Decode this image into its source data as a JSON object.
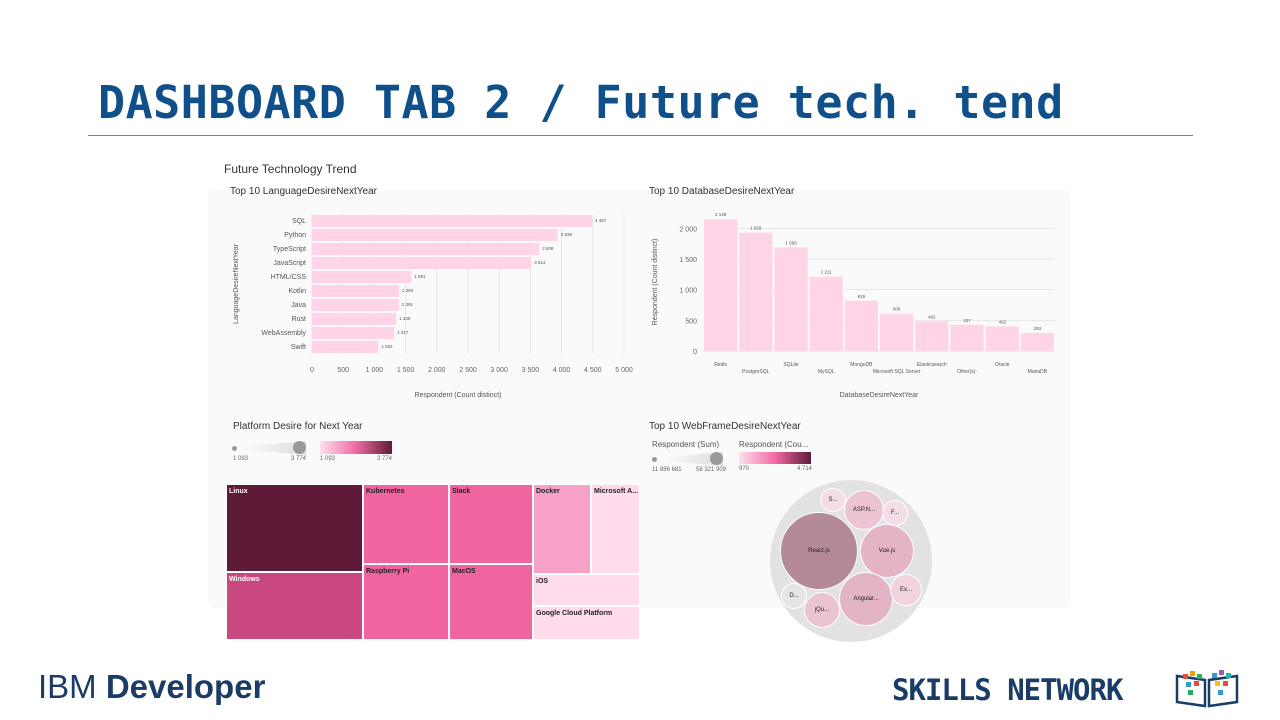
{
  "slide": {
    "title": "DASHBOARD TAB 2 / Future tech. tend",
    "ibm_logo_prefix": "IBM",
    "ibm_logo_bold": "Developer",
    "skills_network": "SKILLS NETWORK"
  },
  "dashboard": {
    "title": "Future Technology Trend"
  },
  "chart_data": [
    {
      "type": "bar",
      "orientation": "horizontal",
      "title": "Top 10 LanguageDesireNextYear",
      "xlabel": "Respondent (Count distinct)",
      "ylabel": "LanguageDesireNextYear",
      "xlim": [
        0,
        5000
      ],
      "ticks": [
        "0",
        "500",
        "1 000",
        "1 500",
        "2 000",
        "2 500",
        "3 000",
        "3 500",
        "4 000",
        "4 500",
        "5 000"
      ],
      "categories": [
        "SQL",
        "Python",
        "TypeScript",
        "JavaScript",
        "HTML/CSS",
        "Kotlin",
        "Java",
        "Rust",
        "WebAssembly",
        "Swift"
      ],
      "values": [
        4487,
        3938,
        3639,
        3514,
        1591,
        1393,
        1391,
        1349,
        1317,
        1062
      ],
      "labels": [
        "4 487",
        "3 938",
        "3 639",
        "3 514",
        "1 591",
        "1 393",
        "1 391",
        "1 349",
        "1 317",
        "1 062"
      ],
      "color": "#ffd4e6",
      "grid": true
    },
    {
      "type": "bar",
      "title": "Top 10 DatabaseDesireNextYear",
      "xlabel": "DatabaseDesireNextYear",
      "ylabel": "Respondent (Count distinct)",
      "ylim": [
        0,
        2250
      ],
      "ticks": [
        "0",
        "500",
        "1 000",
        "1 500",
        "2 000"
      ],
      "categories": [
        "Redis",
        "PostgreSQL",
        "SQLite",
        "MySQL",
        "MongoDB",
        "Microsoft SQL Server",
        "Elasticsearch",
        "Other(s):",
        "Oracle",
        "MariaDB"
      ],
      "values": [
        2149,
        1929,
        1690,
        1211,
        819,
        608,
        482,
        427,
        402,
        293
      ],
      "labels": [
        "2 149",
        "1 929",
        "1 690",
        "1 211",
        "819",
        "608",
        "482",
        "427",
        "402",
        "293"
      ],
      "color": "#ffd4e6",
      "grid": true
    },
    {
      "type": "treemap",
      "title": "Platform Desire for Next Year",
      "size_range": [
        "1 093",
        "3 774"
      ],
      "color_range": [
        "1 093",
        "3 774"
      ],
      "items": [
        {
          "name": "Linux",
          "color": "#5e1a36"
        },
        {
          "name": "Windows",
          "color": "#c94880"
        },
        {
          "name": "Kubernetes",
          "color": "#f0649f"
        },
        {
          "name": "Raspberry Pi",
          "color": "#f0649f"
        },
        {
          "name": "Slack",
          "color": "#f0649f"
        },
        {
          "name": "MacOS",
          "color": "#f0649f"
        },
        {
          "name": "Docker",
          "color": "#f7a1c8"
        },
        {
          "name": "Microsoft A...",
          "color": "#ffdbeb"
        },
        {
          "name": "iOS",
          "color": "#ffdbeb"
        },
        {
          "name": "Google Cloud Platform",
          "color": "#ffdbeb"
        }
      ]
    },
    {
      "type": "bubble",
      "title": "Top 10 WebFrameDesireNextYear",
      "size_legend_title": "Respondent (Sum)",
      "size_range": [
        "11 886 681",
        "58 321 909"
      ],
      "color_legend_title": "Respondent (Cou...",
      "color_range": [
        "970",
        "4 714"
      ],
      "items": [
        {
          "name": "React.js",
          "color": "#b48a98"
        },
        {
          "name": "Vue.js",
          "color": "#e3b3c6"
        },
        {
          "name": "Angular...",
          "color": "#e3b3c6"
        },
        {
          "name": "ASP.N...",
          "color": "#ecc3d3"
        },
        {
          "name": "jQu...",
          "color": "#ecc3d3"
        },
        {
          "name": "Ex...",
          "color": "#f1d3df"
        },
        {
          "name": "F...",
          "color": "#f5dde7"
        },
        {
          "name": "S...",
          "color": "#f5dde7"
        },
        {
          "name": "D...",
          "color": "#e6e6e6"
        }
      ]
    }
  ]
}
